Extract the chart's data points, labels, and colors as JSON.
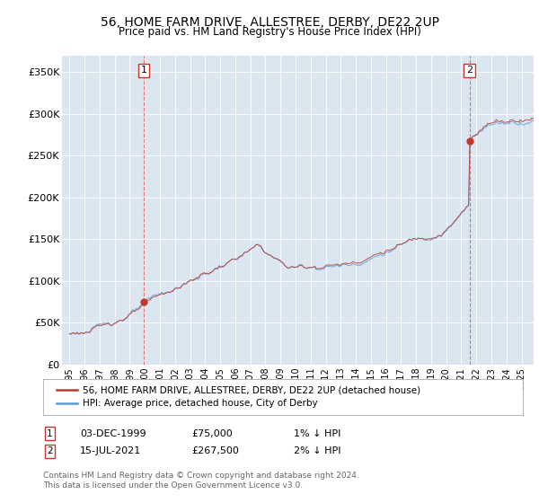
{
  "title": "56, HOME FARM DRIVE, ALLESTREE, DERBY, DE22 2UP",
  "subtitle": "Price paid vs. HM Land Registry's House Price Index (HPI)",
  "legend_line1": "56, HOME FARM DRIVE, ALLESTREE, DERBY, DE22 2UP (detached house)",
  "legend_line2": "HPI: Average price, detached house, City of Derby",
  "footnote": "Contains HM Land Registry data © Crown copyright and database right 2024.\nThis data is licensed under the Open Government Licence v3.0.",
  "annotation1": {
    "label": "1",
    "date": "03-DEC-1999",
    "price": "£75,000",
    "pct": "1% ↓ HPI"
  },
  "annotation2": {
    "label": "2",
    "date": "15-JUL-2021",
    "price": "£267,500",
    "pct": "2% ↓ HPI"
  },
  "sale1_x": 1999.92,
  "sale1_y": 75000,
  "sale2_x": 2021.54,
  "sale2_y": 267500,
  "ylim": [
    0,
    370000
  ],
  "xlim": [
    1994.5,
    2025.8
  ],
  "yticks": [
    0,
    50000,
    100000,
    150000,
    200000,
    250000,
    300000,
    350000
  ],
  "ytick_labels": [
    "£0",
    "£50K",
    "£100K",
    "£150K",
    "£200K",
    "£250K",
    "£300K",
    "£350K"
  ],
  "xticks": [
    1995,
    1996,
    1997,
    1998,
    1999,
    2000,
    2001,
    2002,
    2003,
    2004,
    2005,
    2006,
    2007,
    2008,
    2009,
    2010,
    2011,
    2012,
    2013,
    2014,
    2015,
    2016,
    2017,
    2018,
    2019,
    2020,
    2021,
    2022,
    2023,
    2024,
    2025
  ],
  "bg_color": "#dce6f1",
  "red_color": "#c0392b",
  "blue_color": "#5b9bd5",
  "vline_color": "#e05050"
}
